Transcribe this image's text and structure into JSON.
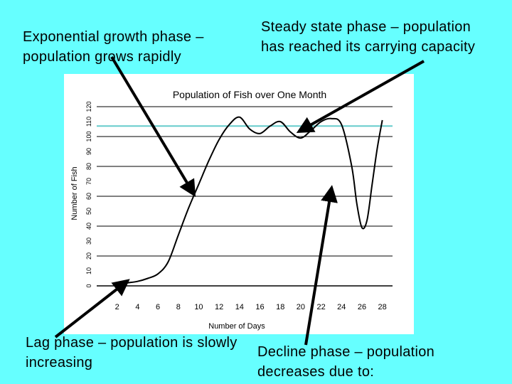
{
  "captions": {
    "top_left": "Exponential growth phase – population grows rapidly",
    "top_right": "Steady state phase – population has reached its carrying capacity",
    "bottom_left": "Lag phase – population is slowly increasing",
    "bottom_right": "Decline phase – population decreases due to:"
  },
  "colors": {
    "background": "#66FFFF",
    "chart_background": "#FFFFFF",
    "line": "#000000",
    "capacity_line": "#66CCCC",
    "arrow": "#000000"
  },
  "chart_data": {
    "type": "line",
    "title": "Population of Fish over One Month",
    "xlabel": "Number of Days",
    "ylabel": "Number of Fish",
    "xlim": [
      0,
      29
    ],
    "ylim": [
      0,
      120
    ],
    "x_ticks": [
      2,
      4,
      6,
      8,
      10,
      12,
      14,
      16,
      18,
      20,
      22,
      24,
      26,
      28
    ],
    "y_ticks": [
      0,
      10,
      20,
      30,
      40,
      50,
      60,
      70,
      80,
      90,
      100,
      110,
      120
    ],
    "grid": true,
    "legend": "none",
    "reference_line": 107,
    "series": [
      {
        "x": [
          2,
          3,
          4,
          5,
          6,
          7,
          8,
          9,
          10,
          11,
          12,
          13,
          14,
          15,
          16,
          17,
          18,
          19,
          20,
          21,
          22,
          23,
          24,
          25,
          25.5,
          26,
          26.5,
          27,
          27.5,
          28
        ],
        "y": [
          1,
          2,
          3,
          5,
          8,
          16,
          34,
          52,
          68,
          84,
          98,
          108,
          113,
          105,
          102,
          107,
          110,
          103,
          99,
          104,
          110,
          112,
          108,
          80,
          55,
          39,
          44,
          68,
          92,
          111
        ]
      }
    ]
  }
}
